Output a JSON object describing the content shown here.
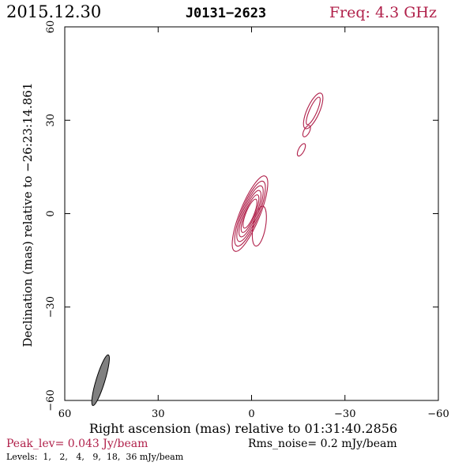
{
  "header": {
    "date": "2015.12.30",
    "source": "J0131−2623",
    "freq": "Freq: 4.3 GHz"
  },
  "footer": {
    "peak": "Peak_lev=  0.043 Jy/beam",
    "rms": "Rms_noise=  0.2 mJy/beam",
    "levels": "Levels:  1,   2,   4,   9,  18,  36 mJy/beam"
  },
  "colors": {
    "accent": "#b0204a",
    "contour": "#b0204a",
    "beam": "#808080",
    "axis": "#000000"
  },
  "chart_data": {
    "type": "contour",
    "xlabel": "Right ascension (mas) relative to 01:31:40.2856",
    "ylabel": "Declination (mas) relative to −26:23:14.861",
    "xlim": [
      60,
      -60
    ],
    "ylim": [
      -60,
      60
    ],
    "xticks": [
      60,
      30,
      0,
      -30,
      -60
    ],
    "xtick_labels": [
      "60",
      "30",
      "0",
      "−30",
      "−60"
    ],
    "yticks": [
      -60,
      -30,
      0,
      30,
      60
    ],
    "ytick_labels": [
      "−60",
      "−30",
      "0",
      "30",
      "60"
    ],
    "levels_mjy": [
      1,
      2,
      4,
      9,
      18,
      36
    ],
    "components": [
      {
        "cx": 0.5,
        "cy": 0,
        "angle_deg": 68,
        "contours": [
          {
            "a": 13.0,
            "b": 3.2
          },
          {
            "a": 11.2,
            "b": 2.8
          },
          {
            "a": 9.6,
            "b": 2.4
          },
          {
            "a": 8.0,
            "b": 2.0
          },
          {
            "a": 6.5,
            "b": 1.6
          },
          {
            "a": 5.0,
            "b": 1.3
          }
        ]
      },
      {
        "cx": -2.5,
        "cy": -4.0,
        "angle_deg": 80,
        "contours": [
          {
            "a": 6.5,
            "b": 2.0
          }
        ]
      },
      {
        "cx": -19.8,
        "cy": 33.0,
        "angle_deg": 66,
        "contours": [
          {
            "a": 6.2,
            "b": 2.0
          },
          {
            "a": 4.8,
            "b": 1.2
          }
        ]
      },
      {
        "cx": -17.7,
        "cy": 26.5,
        "angle_deg": 62,
        "contours": [
          {
            "a": 2.0,
            "b": 0.9
          }
        ]
      },
      {
        "cx": -16.0,
        "cy": 20.5,
        "angle_deg": 62,
        "contours": [
          {
            "a": 2.2,
            "b": 0.9
          }
        ]
      }
    ],
    "beam": {
      "cx": 48.5,
      "cy": -53.5,
      "major": 8.5,
      "minor": 1.4,
      "angle_deg": 73
    }
  }
}
